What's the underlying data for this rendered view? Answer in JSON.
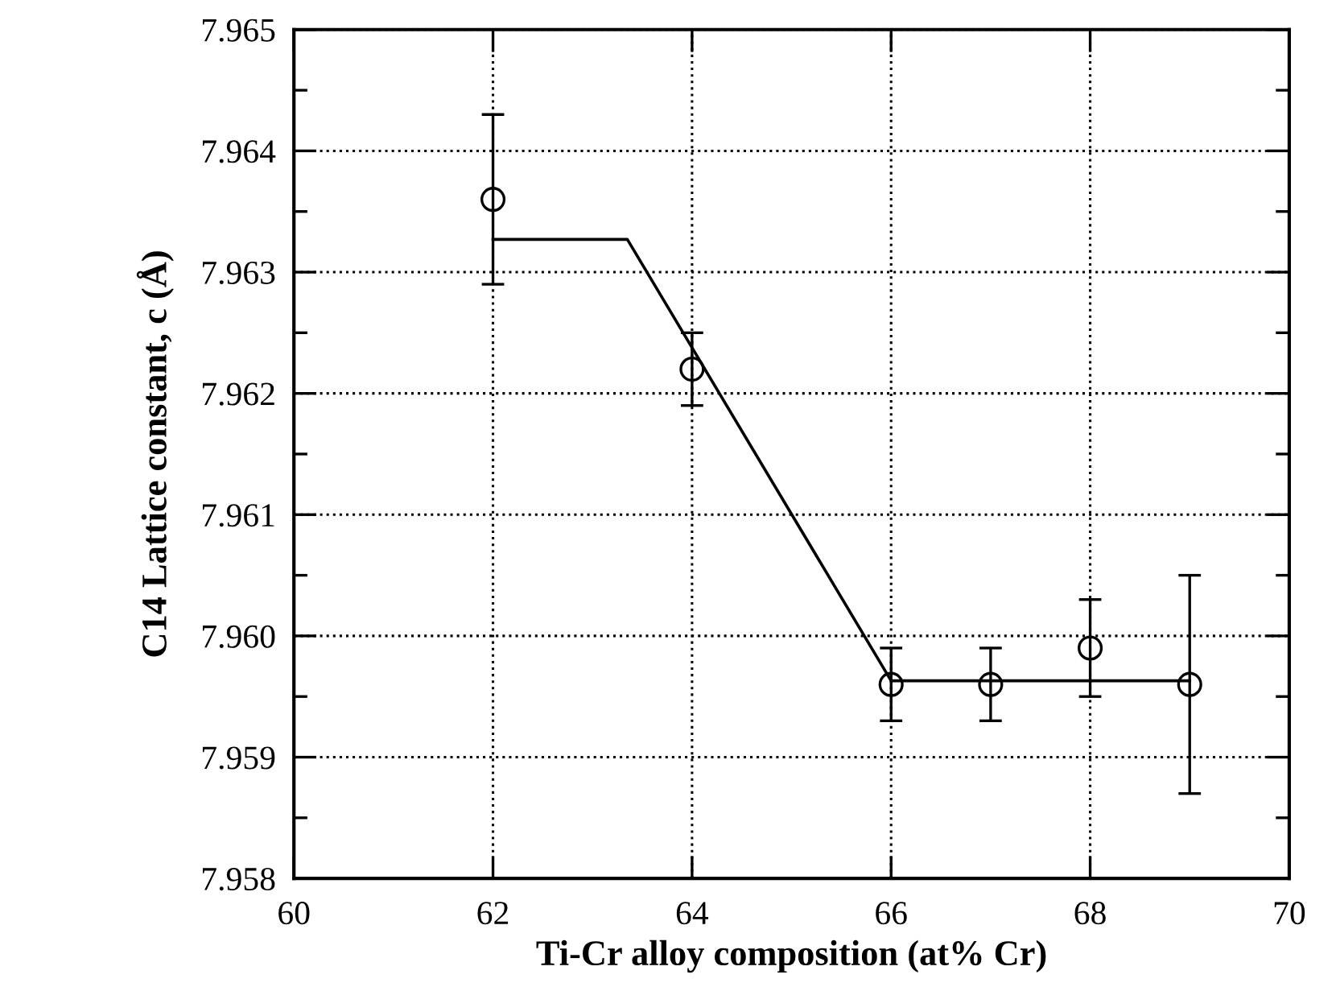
{
  "chart_data": {
    "type": "scatter",
    "xlabel": "Ti-Cr alloy composition (at% Cr)",
    "ylabel": "C14 Lattice constant, c (Å)",
    "xlim": [
      60,
      70
    ],
    "ylim": [
      7.958,
      7.965
    ],
    "xticks": [
      60,
      62,
      64,
      66,
      68,
      70
    ],
    "yticks": [
      {
        "value": 7.958,
        "label": "7.958"
      },
      {
        "value": 7.9585,
        "label": null
      },
      {
        "value": 7.959,
        "label": "7.959"
      },
      {
        "value": 7.9595,
        "label": null
      },
      {
        "value": 7.96,
        "label": "7.960"
      },
      {
        "value": 7.9605,
        "label": null
      },
      {
        "value": 7.961,
        "label": "7.961"
      },
      {
        "value": 7.9615,
        "label": null
      },
      {
        "value": 7.962,
        "label": "7.962"
      },
      {
        "value": 7.9625,
        "label": null
      },
      {
        "value": 7.963,
        "label": "7.963"
      },
      {
        "value": 7.9635,
        "label": null
      },
      {
        "value": 7.964,
        "label": "7.964"
      },
      {
        "value": 7.9645,
        "label": null
      },
      {
        "value": 7.965,
        "label": "7.965"
      }
    ],
    "grid": true,
    "marker": "circle",
    "series": [
      {
        "color": "#000000",
        "x": [
          62,
          64,
          66,
          67,
          68,
          69
        ],
        "values": [
          7.9636,
          7.9622,
          7.9596,
          7.9596,
          7.9599,
          7.9596
        ],
        "errors": [
          0.0007,
          0.0003,
          0.0003,
          0.0003,
          0.0004,
          0.0009
        ]
      },
      {
        "type": "line",
        "color": "#000000",
        "marker": "none",
        "line_style": "solid",
        "x": [
          62,
          63.35,
          66,
          69
        ],
        "values": [
          7.96327,
          7.96327,
          7.95963,
          7.95963
        ]
      }
    ]
  }
}
